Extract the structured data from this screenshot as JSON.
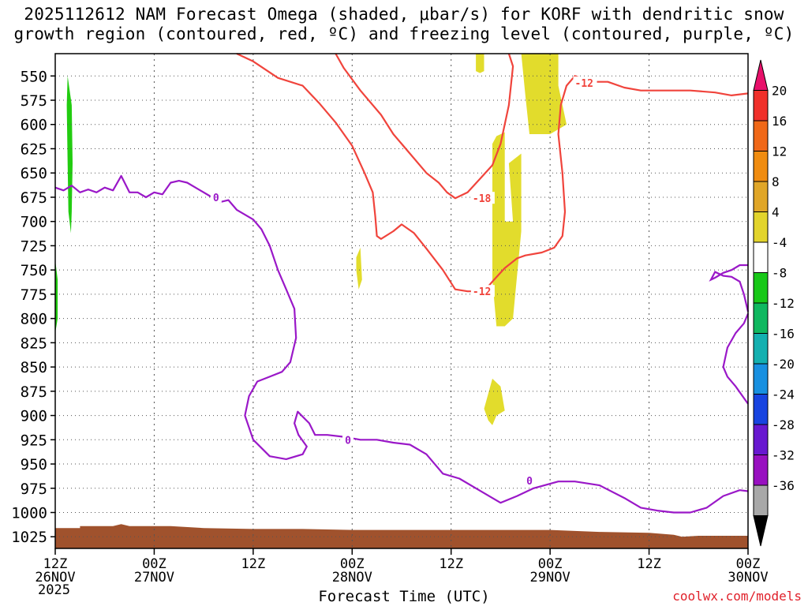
{
  "chart_data": {
    "type": "heatmap",
    "title_lines": [
      "2025112612 NAM Forecast Omega (shaded, μbar/s) for KORF with dendritic snow",
      "growth region (contoured, red, ºC) and freezing level (contoured, purple, ºC)"
    ],
    "xlabel": "Forecast Time (UTC)",
    "credit": "coolwx.com/models",
    "year": "2025",
    "x_ticks": [
      {
        "top": "12Z",
        "bottom": "26NOV",
        "hour": 0
      },
      {
        "top": "00Z",
        "bottom": "27NOV",
        "hour": 12
      },
      {
        "top": "12Z",
        "bottom": "",
        "hour": 24
      },
      {
        "top": "00Z",
        "bottom": "28NOV",
        "hour": 36
      },
      {
        "top": "12Z",
        "bottom": "",
        "hour": 48
      },
      {
        "top": "00Z",
        "bottom": "29NOV",
        "hour": 60
      },
      {
        "top": "12Z",
        "bottom": "",
        "hour": 72
      },
      {
        "top": "00Z",
        "bottom": "30NOV",
        "hour": 84
      }
    ],
    "x_range_hours": [
      0,
      84
    ],
    "y_ticks": [
      550,
      575,
      600,
      625,
      650,
      675,
      700,
      725,
      750,
      775,
      800,
      825,
      850,
      875,
      900,
      925,
      950,
      975,
      1000,
      1025
    ],
    "y_range_hPa": [
      527,
      1037
    ],
    "colorbar": {
      "labels": [
        "20",
        "16",
        "12",
        "8",
        "4",
        "-4",
        "-8",
        "-12",
        "-16",
        "-20",
        "-24",
        "-28",
        "-32",
        "-36"
      ],
      "colors": [
        "#e8106a",
        "#f0302a",
        "#f06818",
        "#f08c10",
        "#e0a628",
        "#e2d42c",
        "#ffffff",
        "#18c818",
        "#10b860",
        "#14b0b0",
        "#1890e0",
        "#1844e0",
        "#6818d0",
        "#9810c0",
        "#a8a8a8",
        "#000000"
      ]
    },
    "contours": {
      "freezing_level_label": "0",
      "dendritic_labels": [
        "-12",
        "-18",
        "-12"
      ],
      "freezing_level_color": "#9a18c8",
      "dendritic_color": "#f0443c"
    },
    "shading": {
      "green_color": "#22cc10",
      "yellow_color": "#e2dc2c",
      "terrain_color": "#a0522d"
    },
    "freezing_level": [
      [
        0,
        665
      ],
      [
        1,
        668
      ],
      [
        2,
        663
      ],
      [
        3,
        670
      ],
      [
        4,
        667
      ],
      [
        5,
        670
      ],
      [
        6,
        665
      ],
      [
        7,
        668
      ],
      [
        8,
        653
      ],
      [
        9,
        670
      ],
      [
        10,
        670
      ],
      [
        11,
        675
      ],
      [
        12,
        670
      ],
      [
        13,
        672
      ],
      [
        14,
        660
      ],
      [
        15,
        658
      ],
      [
        16,
        660
      ],
      [
        17,
        665
      ],
      [
        19,
        675
      ],
      [
        20,
        680
      ],
      [
        21,
        678
      ],
      [
        22,
        688
      ],
      [
        24,
        698
      ],
      [
        25,
        708
      ],
      [
        26,
        725
      ],
      [
        27,
        750
      ],
      [
        28,
        770
      ],
      [
        29,
        790
      ],
      [
        29.2,
        820
      ],
      [
        28.5,
        845
      ],
      [
        27.5,
        855
      ],
      [
        26,
        860
      ],
      [
        24.5,
        865
      ],
      [
        23.5,
        880
      ],
      [
        23,
        900
      ],
      [
        24,
        925
      ],
      [
        26,
        942
      ],
      [
        28,
        945
      ],
      [
        30,
        940
      ],
      [
        30.5,
        932
      ],
      [
        29.5,
        920
      ],
      [
        29,
        908
      ],
      [
        29.4,
        896
      ],
      [
        30.8,
        908
      ],
      [
        31.5,
        920
      ],
      [
        33,
        920
      ],
      [
        35,
        922
      ],
      [
        37,
        925
      ],
      [
        39,
        925
      ],
      [
        41,
        928
      ],
      [
        43,
        930
      ],
      [
        45,
        940
      ],
      [
        47,
        960
      ],
      [
        49,
        965
      ],
      [
        51,
        975
      ],
      [
        54,
        990
      ],
      [
        56,
        983
      ],
      [
        58,
        975
      ],
      [
        61,
        968
      ],
      [
        63,
        968
      ],
      [
        66,
        972
      ],
      [
        69,
        985
      ],
      [
        71,
        995
      ],
      [
        73,
        998
      ],
      [
        75,
        1000
      ],
      [
        77,
        1000
      ],
      [
        79,
        995
      ],
      [
        81,
        983
      ],
      [
        83,
        977
      ],
      [
        84,
        978
      ]
    ],
    "freezing_level_right": [
      [
        84,
        888
      ],
      [
        82.5,
        870
      ],
      [
        81.5,
        860
      ],
      [
        81,
        850
      ],
      [
        81.5,
        830
      ],
      [
        82.5,
        815
      ],
      [
        83.5,
        805
      ],
      [
        84,
        795
      ]
    ],
    "freezing_level_right2": [
      [
        84,
        793
      ],
      [
        83.5,
        775
      ],
      [
        83,
        762
      ],
      [
        82,
        757
      ],
      [
        81,
        756
      ],
      [
        80,
        752
      ],
      [
        79.5,
        760
      ],
      [
        80,
        758
      ],
      [
        81,
        753
      ],
      [
        82,
        750
      ],
      [
        83,
        745
      ],
      [
        84,
        745
      ]
    ],
    "dendritic_a": [
      [
        22,
        527
      ],
      [
        24,
        535
      ],
      [
        27,
        552
      ],
      [
        30,
        560
      ],
      [
        32,
        578
      ],
      [
        34,
        598
      ],
      [
        36,
        622
      ],
      [
        37.5,
        650
      ],
      [
        38.5,
        670
      ],
      [
        38.8,
        695
      ],
      [
        39,
        715
      ],
      [
        39.5,
        718
      ],
      [
        41,
        710
      ],
      [
        42,
        703
      ],
      [
        43.5,
        712
      ],
      [
        45,
        728
      ],
      [
        47,
        750
      ],
      [
        48.5,
        770
      ],
      [
        50,
        772
      ],
      [
        51.5,
        772
      ],
      [
        52,
        772
      ],
      [
        53,
        762
      ],
      [
        54.5,
        748
      ],
      [
        56,
        738
      ],
      [
        57,
        735
      ],
      [
        59,
        732
      ],
      [
        60.5,
        727
      ],
      [
        61.5,
        715
      ],
      [
        61.8,
        690
      ],
      [
        61.5,
        650
      ],
      [
        61,
        610
      ],
      [
        61.3,
        580
      ],
      [
        62,
        560
      ],
      [
        63,
        550
      ],
      [
        64,
        553
      ],
      [
        65,
        556
      ],
      [
        67,
        556
      ],
      [
        69,
        562
      ],
      [
        71,
        565
      ],
      [
        74,
        565
      ],
      [
        77,
        565
      ],
      [
        80,
        567
      ],
      [
        82,
        570
      ],
      [
        84,
        568
      ]
    ],
    "dendritic_b": [
      [
        34,
        527
      ],
      [
        35,
        542
      ],
      [
        37,
        565
      ],
      [
        39.5,
        590
      ],
      [
        41,
        610
      ],
      [
        43,
        630
      ],
      [
        45,
        650
      ],
      [
        46.5,
        660
      ],
      [
        47.5,
        670
      ],
      [
        48.5,
        676
      ],
      [
        50,
        670
      ],
      [
        51.5,
        656
      ],
      [
        53,
        642
      ],
      [
        54,
        620
      ],
      [
        55,
        580
      ],
      [
        55.5,
        540
      ],
      [
        55,
        527
      ]
    ],
    "dendritic_labels_pos": [
      [
        63,
        557
      ],
      [
        50.6,
        676
      ],
      [
        50.6,
        772
      ]
    ],
    "freezing_labels_pos": [
      [
        19.5,
        675
      ],
      [
        35.5,
        925
      ],
      [
        57.5,
        967
      ]
    ],
    "green_band": [
      [
        1.5,
        550
      ],
      [
        2.0,
        580
      ],
      [
        2.1,
        640
      ],
      [
        2.0,
        690
      ],
      [
        1.9,
        712
      ],
      [
        1.6,
        690
      ],
      [
        1.5,
        640
      ],
      [
        1.4,
        580
      ]
    ],
    "green_edge": [
      [
        0,
        740
      ],
      [
        0.3,
        760
      ],
      [
        0.3,
        800
      ],
      [
        0,
        815
      ]
    ],
    "yellow_patches": [
      [
        [
          51,
          527
        ],
        [
          52,
          527
        ],
        [
          52,
          545
        ],
        [
          51.5,
          547
        ],
        [
          51,
          545
        ]
      ],
      [
        [
          56.5,
          527
        ],
        [
          61,
          527
        ],
        [
          61,
          560
        ],
        [
          62,
          600
        ],
        [
          60,
          610
        ],
        [
          57.5,
          610
        ],
        [
          57,
          570
        ]
      ],
      [
        [
          53,
          620
        ],
        [
          53.5,
          612
        ],
        [
          54.5,
          608
        ],
        [
          54.5,
          700
        ],
        [
          55.5,
          700
        ],
        [
          55,
          640
        ],
        [
          56.5,
          630
        ],
        [
          56.5,
          710
        ],
        [
          55.5,
          800
        ],
        [
          54.5,
          808
        ],
        [
          53.5,
          808
        ],
        [
          53,
          760
        ]
      ],
      [
        [
          36.5,
          737
        ],
        [
          37,
          727
        ],
        [
          37.2,
          760
        ],
        [
          36.8,
          770
        ],
        [
          36.5,
          750
        ]
      ],
      [
        [
          52,
          893
        ],
        [
          53,
          862
        ],
        [
          54,
          870
        ],
        [
          54.5,
          895
        ],
        [
          53.5,
          900
        ],
        [
          53,
          910
        ],
        [
          52.5,
          905
        ]
      ]
    ],
    "terrain": [
      [
        0,
        1016
      ],
      [
        3,
        1016
      ],
      [
        3,
        1014
      ],
      [
        7,
        1014
      ],
      [
        8,
        1012
      ],
      [
        9,
        1014
      ],
      [
        14,
        1014
      ],
      [
        18,
        1016
      ],
      [
        24,
        1017
      ],
      [
        30,
        1017
      ],
      [
        36,
        1018
      ],
      [
        45,
        1018
      ],
      [
        54,
        1018
      ],
      [
        60,
        1018
      ],
      [
        66,
        1020
      ],
      [
        72,
        1021
      ],
      [
        75,
        1023
      ],
      [
        76,
        1025
      ],
      [
        78,
        1024
      ],
      [
        84,
        1024
      ]
    ]
  }
}
